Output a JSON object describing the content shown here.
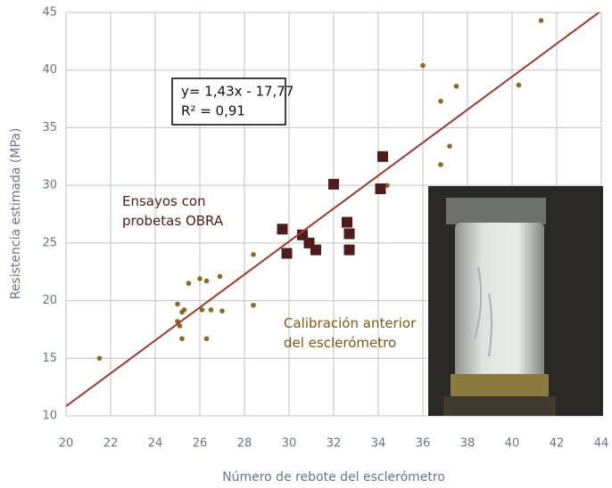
{
  "chart_data": {
    "type": "scatter",
    "x_label": "Número de rebote del esclerómetro",
    "y_label": "Resistencia estimada (MPa)",
    "xlim": [
      20,
      44
    ],
    "xticks": [
      20,
      22,
      24,
      26,
      28,
      30,
      32,
      34,
      36,
      38,
      40,
      42,
      44
    ],
    "ylim": [
      10,
      45
    ],
    "yticks": [
      10,
      15,
      20,
      25,
      30,
      35,
      40,
      45
    ],
    "grid": true,
    "series": [
      {
        "name": "Calibración anterior del esclerómetro",
        "color": "#8a6a22",
        "marker": "circle",
        "x": [
          21.5,
          25.0,
          25.0,
          25.1,
          25.2,
          25.3,
          25.2,
          25.5,
          26.0,
          26.1,
          26.3,
          26.3,
          26.5,
          26.9,
          27.0,
          28.4,
          28.4,
          34.4,
          36.0,
          36.8,
          36.8,
          37.2,
          37.5,
          40.3,
          41.3
        ],
        "values": [
          15.0,
          19.7,
          18.2,
          17.8,
          19.0,
          19.2,
          16.7,
          21.5,
          21.9,
          19.2,
          21.7,
          16.7,
          19.2,
          22.1,
          19.1,
          24.0,
          19.6,
          30.0,
          40.4,
          37.3,
          31.8,
          33.4,
          38.6,
          38.7,
          44.3
        ]
      },
      {
        "name": "Ensayos con probetas OBRA",
        "color": "#4e1c1c",
        "marker": "square",
        "x": [
          29.7,
          29.9,
          30.6,
          30.9,
          31.2,
          32.0,
          32.6,
          32.7,
          32.7,
          34.1,
          34.2
        ],
        "values": [
          26.2,
          24.1,
          25.7,
          25.0,
          24.4,
          30.1,
          26.8,
          25.8,
          24.4,
          29.7,
          32.5
        ]
      }
    ],
    "trendline": {
      "color": "#9b3a2c",
      "x": [
        20,
        44
      ],
      "values": [
        10.83,
        45.15
      ],
      "equation": "y= 1,43x - 17,77",
      "r2": "R² = 0,91"
    }
  }
}
